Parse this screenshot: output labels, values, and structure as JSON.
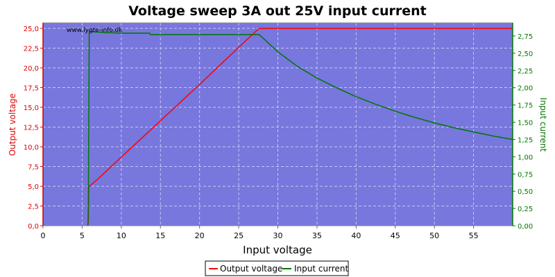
{
  "chart_data": {
    "type": "line",
    "title": "Voltage sweep 3A out 25V input current",
    "watermark": "www.lygte-info.dk",
    "xlabel": "Input voltage",
    "ylabel_left": "Output voltage",
    "ylabel_right": "Input current",
    "xlim": [
      0,
      60
    ],
    "ylim_left": [
      0,
      25.7
    ],
    "ylim_right": [
      0,
      2.94
    ],
    "x_ticks": [
      "0",
      "5",
      "10",
      "15",
      "20",
      "25",
      "30",
      "35",
      "40",
      "45",
      "50",
      "55"
    ],
    "y_left_ticks": [
      "0,0",
      "2,5",
      "5,0",
      "7,5",
      "10,0",
      "12,5",
      "15,0",
      "17,5",
      "20,0",
      "22,5",
      "25,0"
    ],
    "y_right_ticks": [
      "0,00",
      "0,25",
      "0,50",
      "0,75",
      "1,00",
      "1,25",
      "1,50",
      "1,75",
      "2,00",
      "2,25",
      "2,50",
      "2,75"
    ],
    "grid": true,
    "legend": "bottom-center",
    "plot_background": "#7777dd",
    "series": [
      {
        "name": "Output voltage",
        "axis": "left",
        "color": "#ff0000",
        "points": [
          [
            5.7,
            0
          ],
          [
            5.75,
            0.3
          ],
          [
            5.8,
            0.5
          ],
          [
            5.85,
            4.9
          ],
          [
            5.9,
            5.0
          ],
          [
            7,
            5.9
          ],
          [
            10,
            8.7
          ],
          [
            15,
            13.3
          ],
          [
            20,
            17.9
          ],
          [
            25,
            22.6
          ],
          [
            27.6,
            25.0
          ],
          [
            60,
            25.0
          ]
        ]
      },
      {
        "name": "Input current",
        "axis": "right",
        "color": "#007700",
        "points": [
          [
            5.75,
            0
          ],
          [
            5.8,
            0.4
          ],
          [
            5.9,
            2.82
          ],
          [
            6.5,
            2.81
          ],
          [
            8,
            2.8
          ],
          [
            10,
            2.79
          ],
          [
            13.6,
            2.79
          ],
          [
            13.7,
            2.77
          ],
          [
            20,
            2.77
          ],
          [
            25,
            2.77
          ],
          [
            27.6,
            2.77
          ],
          [
            28,
            2.73
          ],
          [
            30,
            2.52
          ],
          [
            32.5,
            2.31
          ],
          [
            35,
            2.14
          ],
          [
            37.5,
            2.0
          ],
          [
            40,
            1.87
          ],
          [
            42.5,
            1.76
          ],
          [
            45,
            1.66
          ],
          [
            47.5,
            1.57
          ],
          [
            50,
            1.49
          ],
          [
            52.5,
            1.42
          ],
          [
            55,
            1.36
          ],
          [
            57.5,
            1.3
          ],
          [
            60,
            1.25
          ]
        ]
      }
    ]
  }
}
